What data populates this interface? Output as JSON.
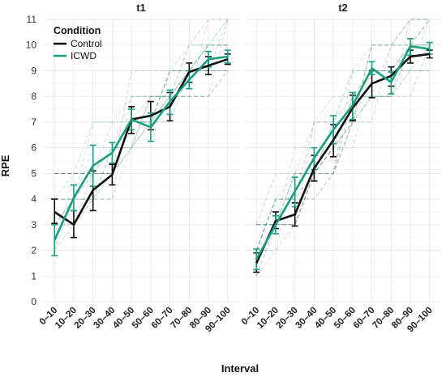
{
  "chart_data": {
    "type": "line",
    "xlabel": "Interval",
    "ylabel": "RPE",
    "ylim": [
      0,
      11
    ],
    "y_ticks": [
      0,
      1,
      2,
      3,
      4,
      5,
      6,
      7,
      8,
      9,
      10,
      11
    ],
    "categories": [
      "0–10",
      "10–20",
      "20–30",
      "30–40",
      "40–50",
      "50–60",
      "60–70",
      "70–80",
      "80–90",
      "90–100"
    ],
    "grid": true,
    "legend": {
      "title": "Condition",
      "placement": "top-left",
      "entries": [
        {
          "label": "Control",
          "color": "#111111"
        },
        {
          "label": "ICWD",
          "color": "#1a9e80"
        }
      ]
    },
    "panels": [
      {
        "title": "t1",
        "series": [
          {
            "name": "Control",
            "color": "#111111",
            "values": [
              3.5,
              3.0,
              4.35,
              4.95,
              7.1,
              7.25,
              7.6,
              8.95,
              9.2,
              9.45
            ],
            "lower": [
              3.05,
              2.5,
              3.55,
              4.55,
              6.55,
              6.7,
              7.05,
              8.55,
              8.85,
              9.25
            ],
            "upper": [
              4.0,
              3.55,
              5.1,
              5.35,
              7.6,
              7.8,
              8.15,
              9.3,
              9.55,
              9.65
            ]
          },
          {
            "name": "ICWD",
            "color": "#1a9e80",
            "values": [
              2.4,
              4.05,
              5.3,
              5.8,
              7.1,
              6.8,
              7.8,
              8.65,
              9.45,
              9.55
            ],
            "lower": [
              1.8,
              3.55,
              4.5,
              5.4,
              6.7,
              6.25,
              7.3,
              8.3,
              9.15,
              9.3
            ],
            "upper": [
              3.0,
              4.55,
              6.1,
              6.2,
              7.5,
              7.35,
              8.25,
              9.0,
              9.75,
              9.8
            ]
          }
        ]
      },
      {
        "title": "t2",
        "series": [
          {
            "name": "Control",
            "color": "#111111",
            "values": [
              1.5,
              3.15,
              3.4,
              5.2,
              6.3,
              7.55,
              8.5,
              8.8,
              9.55,
              9.65
            ],
            "lower": [
              1.15,
              2.85,
              2.95,
              4.7,
              5.65,
              7.05,
              7.95,
              8.4,
              9.3,
              9.5
            ],
            "upper": [
              1.9,
              3.5,
              3.85,
              5.7,
              6.9,
              8.05,
              9.0,
              9.15,
              9.8,
              9.8
            ]
          },
          {
            "name": "ICWD",
            "color": "#1a9e80",
            "values": [
              1.65,
              3.0,
              4.3,
              5.6,
              6.7,
              7.65,
              9.1,
              8.55,
              9.95,
              9.85
            ],
            "lower": [
              1.25,
              2.65,
              3.7,
              5.15,
              6.15,
              7.1,
              8.85,
              8.1,
              9.6,
              9.65
            ],
            "upper": [
              2.05,
              3.35,
              4.85,
              6.0,
              7.25,
              8.15,
              9.35,
              8.95,
              10.25,
              10.1
            ]
          }
        ]
      }
    ]
  }
}
